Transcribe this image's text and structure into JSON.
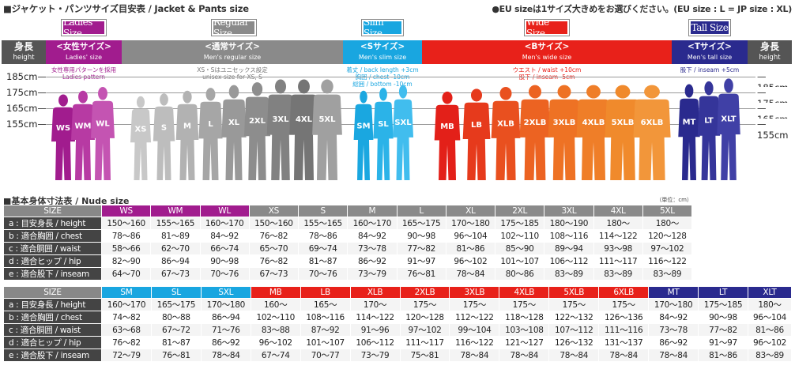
{
  "header": {
    "title": "■ジャケット・パンツサイズ目安表 / Jacket & Pants size",
    "eu_note": "●EU sizeは1サイズ大きめをお選びください。(EU size : L = JP size : XL)"
  },
  "colors": {
    "ladies": "#a11c8e",
    "regular": "#8a8a8a",
    "slim": "#19a6e0",
    "wide": "#e8211a",
    "tall": "#2a2a8e",
    "dark": "#444444"
  },
  "badges": {
    "ladies": "Ladies Size",
    "regular": "Regular Size",
    "slim": "Slim Size",
    "wide": "Wide Size",
    "tall": "Tall Size"
  },
  "side": {
    "jp": "身長",
    "en": "height"
  },
  "bands": {
    "ladies": {
      "jp": "<女性サイズ>",
      "en": "Ladies' size"
    },
    "regular": {
      "jp": "<通常サイズ>",
      "en": "Men's regular size"
    },
    "slim": {
      "jp": "<Sサイズ>",
      "en": "Men's slim size"
    },
    "wide": {
      "jp": "<Bサイズ>",
      "en": "Men's wide size"
    },
    "tall": {
      "jp": "<Tサイズ>",
      "en": "Men's tall size"
    }
  },
  "notes": {
    "ladies": [
      "女性専用パターンを採用",
      "Ladies pattern"
    ],
    "regular": [
      "XS・Sはユニセックス設定",
      "unisex size for XS, S"
    ],
    "slim": [
      "着丈 / back length +3cm",
      "胸囲 / chest -10cm",
      "総囲 / bottom -10cm"
    ],
    "wide": [
      "ウエスト / waist +10cm",
      "股下 / inseam -5cm"
    ],
    "tall": [
      "股下 / inseam +5cm"
    ]
  },
  "height_marks": [
    "185cm",
    "175cm",
    "165cm",
    "155cm"
  ],
  "figures": {
    "ladies": [
      "WS",
      "WM",
      "WL"
    ],
    "regular": [
      "XS",
      "S",
      "M",
      "L",
      "XL",
      "2XL",
      "3XL",
      "4XL",
      "5XL"
    ],
    "slim": [
      "SM",
      "SL",
      "SXL"
    ],
    "wide": [
      "MB",
      "LB",
      "XLB",
      "2XLB",
      "3XLB",
      "4XLB",
      "5XLB",
      "6XLB"
    ],
    "tall": [
      "MT",
      "LT",
      "XLT"
    ]
  },
  "nude_title": "■基本身体寸法表 / Nude size",
  "unit_note": "（単位：cm）",
  "row_labels": [
    "a : 目安身長 / height",
    "b : 適合胸囲 / chest",
    "c : 適合胴囲 / waist",
    "d : 適合ヒップ / hip",
    "e : 適合股下 / inseam"
  ],
  "table1": {
    "size_label": "SIZE",
    "sizes": [
      "WS",
      "WM",
      "WL",
      "XS",
      "S",
      "M",
      "L",
      "XL",
      "2XL",
      "3XL",
      "4XL",
      "5XL"
    ],
    "groups": [
      "ladies",
      "ladies",
      "ladies",
      "regular",
      "regular",
      "regular",
      "regular",
      "regular",
      "regular",
      "regular",
      "regular",
      "regular"
    ],
    "rows": [
      [
        "150〜160",
        "155〜165",
        "160〜170",
        "150〜160",
        "155〜165",
        "160〜170",
        "165〜175",
        "170〜180",
        "175〜185",
        "180〜190",
        "180〜",
        "180〜"
      ],
      [
        "78〜86",
        "81〜89",
        "84〜92",
        "76〜82",
        "78〜86",
        "84〜92",
        "90〜98",
        "96〜104",
        "102〜110",
        "108〜116",
        "114〜122",
        "120〜128"
      ],
      [
        "58〜66",
        "62〜70",
        "66〜74",
        "65〜70",
        "69〜74",
        "73〜78",
        "77〜82",
        "81〜86",
        "85〜90",
        "89〜94",
        "93〜98",
        "97〜102"
      ],
      [
        "82〜90",
        "86〜94",
        "90〜98",
        "76〜82",
        "81〜87",
        "86〜92",
        "91〜97",
        "96〜102",
        "101〜107",
        "106〜112",
        "111〜117",
        "116〜122"
      ],
      [
        "64〜70",
        "67〜73",
        "70〜76",
        "67〜73",
        "70〜76",
        "73〜79",
        "76〜81",
        "78〜84",
        "80〜86",
        "83〜89",
        "83〜89",
        "83〜89"
      ]
    ]
  },
  "table2": {
    "size_label": "SIZE",
    "sizes": [
      "SM",
      "SL",
      "SXL",
      "MB",
      "LB",
      "XLB",
      "2XLB",
      "3XLB",
      "4XLB",
      "5XLB",
      "6XLB",
      "MT",
      "LT",
      "XLT"
    ],
    "groups": [
      "slim",
      "slim",
      "slim",
      "wide",
      "wide",
      "wide",
      "wide",
      "wide",
      "wide",
      "wide",
      "wide",
      "tall",
      "tall",
      "tall"
    ],
    "rows": [
      [
        "160〜170",
        "165〜175",
        "170〜180",
        "160〜",
        "165〜",
        "170〜",
        "175〜",
        "175〜",
        "175〜",
        "175〜",
        "175〜",
        "170〜180",
        "175〜185",
        "180〜"
      ],
      [
        "74〜82",
        "80〜88",
        "86〜94",
        "102〜110",
        "108〜116",
        "114〜122",
        "120〜128",
        "112〜122",
        "118〜128",
        "122〜132",
        "126〜136",
        "84〜92",
        "90〜98",
        "96〜104"
      ],
      [
        "63〜68",
        "67〜72",
        "71〜76",
        "83〜88",
        "87〜92",
        "91〜96",
        "97〜102",
        "99〜104",
        "103〜108",
        "107〜112",
        "111〜116",
        "73〜78",
        "77〜82",
        "81〜86"
      ],
      [
        "76〜82",
        "81〜87",
        "86〜92",
        "96〜102",
        "101〜107",
        "106〜112",
        "111〜117",
        "116〜122",
        "121〜127",
        "126〜132",
        "131〜137",
        "86〜92",
        "91〜97",
        "96〜102"
      ],
      [
        "72〜79",
        "76〜81",
        "78〜84",
        "67〜74",
        "70〜77",
        "73〜79",
        "75〜81",
        "78〜84",
        "78〜84",
        "78〜84",
        "78〜84",
        "78〜84",
        "81〜86",
        "83〜89"
      ]
    ]
  }
}
